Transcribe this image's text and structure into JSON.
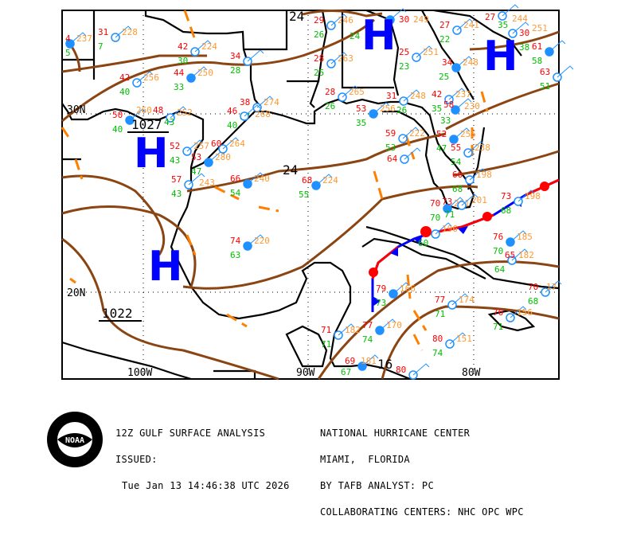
{
  "map": {
    "grid_labels": {
      "lat": [
        "30N",
        "20N"
      ],
      "lon": [
        "100W",
        "90W",
        "80W"
      ]
    },
    "highs": [
      "H",
      "H",
      "H",
      "H"
    ],
    "isobar_labels": [
      "24",
      "1027",
      "24",
      "1022",
      "16"
    ],
    "colors": {
      "isobar": "#8B4513",
      "trough": "#FF8000",
      "cold_front": "#0000FF",
      "warm_front": "#FF0000",
      "high": "#0000FF",
      "station": "#1E90FF",
      "temperature": "#FF0000",
      "dewpoint": "#00C000",
      "pressure": "#FF9933",
      "weather": "#FF00FF",
      "coastline": "#000000"
    },
    "stations": [
      {
        "t": "4",
        "d": "5",
        "p": "237"
      },
      {
        "t": "31",
        "d": "7",
        "p": "228"
      },
      {
        "t": "42",
        "d": "30",
        "p": "224"
      },
      {
        "t": "44",
        "d": "33",
        "p": "250"
      },
      {
        "t": "34",
        "d": "28",
        "p": ""
      },
      {
        "t": "42",
        "d": "40",
        "p": "256"
      },
      {
        "t": "50",
        "d": "40",
        "p": "260"
      },
      {
        "t": "48",
        "d": "43",
        "p": "252"
      },
      {
        "t": "52",
        "d": "43",
        "p": "257"
      },
      {
        "t": "53",
        "d": "47",
        "p": "280"
      },
      {
        "t": "60",
        "d": "",
        "p": "264"
      },
      {
        "t": "57",
        "d": "43",
        "p": "243"
      },
      {
        "t": "66",
        "d": "54",
        "p": "240"
      },
      {
        "t": "38",
        "d": "37",
        "p": "274"
      },
      {
        "t": "46",
        "d": "40",
        "p": "268"
      },
      {
        "t": "68",
        "d": "55",
        "p": "224"
      },
      {
        "t": "29",
        "d": "26",
        "p": "246"
      },
      {
        "t": "28",
        "d": "25",
        "p": "263"
      },
      {
        "t": "30",
        "d": "24",
        "p": "249"
      },
      {
        "t": "25",
        "d": "23",
        "p": "251"
      },
      {
        "t": "27",
        "d": "22",
        "p": "241"
      },
      {
        "t": "34",
        "d": "25",
        "p": "248"
      },
      {
        "t": "27",
        "d": "35",
        "p": "244"
      },
      {
        "t": "30",
        "d": "38",
        "p": "251"
      },
      {
        "t": "61",
        "d": "58",
        "p": ""
      },
      {
        "t": "63",
        "d": "51",
        "p": ""
      },
      {
        "t": "28",
        "d": "26",
        "p": "265"
      },
      {
        "t": "53",
        "d": "35",
        "p": "256"
      },
      {
        "t": "31",
        "d": "26",
        "p": "248"
      },
      {
        "t": "42",
        "d": "35",
        "p": "237"
      },
      {
        "t": "58",
        "d": "33",
        "p": "230"
      },
      {
        "t": "59",
        "d": "53",
        "p": "222"
      },
      {
        "t": "64",
        "d": "",
        "p": ""
      },
      {
        "t": "52",
        "d": "47",
        "p": "255"
      },
      {
        "t": "55",
        "d": "54",
        "p": "238"
      },
      {
        "t": "60",
        "d": "68",
        "p": "198"
      },
      {
        "t": "70",
        "d": "70",
        "p": "201"
      },
      {
        "t": "73",
        "d": "71",
        "p": "201"
      },
      {
        "t": "73",
        "d": "68",
        "p": "198"
      },
      {
        "t": "76",
        "d": "70",
        "p": "185"
      },
      {
        "t": "65",
        "d": "64",
        "p": "182"
      },
      {
        "t": "70",
        "d": "68",
        "p": "17"
      },
      {
        "t": "79",
        "d": "73",
        "p": "166"
      },
      {
        "t": "77",
        "d": "71",
        "p": "174"
      },
      {
        "t": "76",
        "d": "71",
        "p": "156"
      },
      {
        "t": "77",
        "d": "74",
        "p": "170"
      },
      {
        "t": "71",
        "d": "71",
        "p": "182"
      },
      {
        "t": "80",
        "d": "74",
        "p": "151"
      },
      {
        "t": "69",
        "d": "67",
        "p": "181"
      },
      {
        "t": "80",
        "d": "",
        "p": ""
      },
      {
        "t": "",
        "d": "60",
        "p": "196"
      },
      {
        "t": "74",
        "d": "63",
        "p": "220"
      }
    ]
  },
  "footer": {
    "title": "12Z GULF SURFACE ANALYSIS",
    "issued_label": "ISSUED:",
    "issued_time": "Tue Jan 13 14:46:38 UTC 2026",
    "center": "NATIONAL HURRICANE CENTER",
    "location": "MIAMI,  FLORIDA",
    "analyst": "BY TAFB ANALYST: PC",
    "collaborating": "COLLABORATING CENTERS: NHC OPC WPC",
    "logo_text": "NOAA"
  }
}
